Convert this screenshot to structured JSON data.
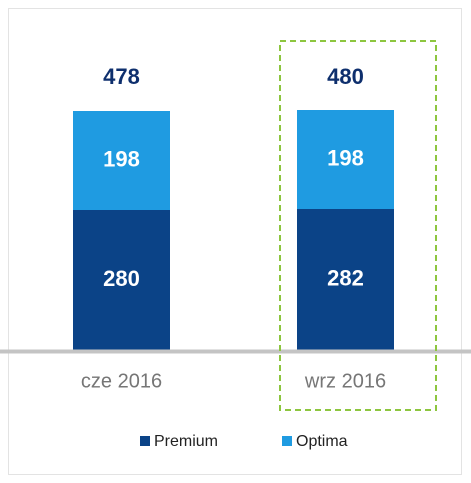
{
  "chart_data": {
    "type": "stacked_bar",
    "categories": [
      "cze 2016",
      "wrz 2016"
    ],
    "series": [
      {
        "name": "Premium",
        "color": "#0b4387",
        "values": [
          280,
          282
        ]
      },
      {
        "name": "Optima",
        "color": "#1f9be1",
        "values": [
          198,
          198
        ]
      }
    ],
    "totals": [
      478,
      480
    ],
    "highlight_color": "#8dc63f"
  }
}
